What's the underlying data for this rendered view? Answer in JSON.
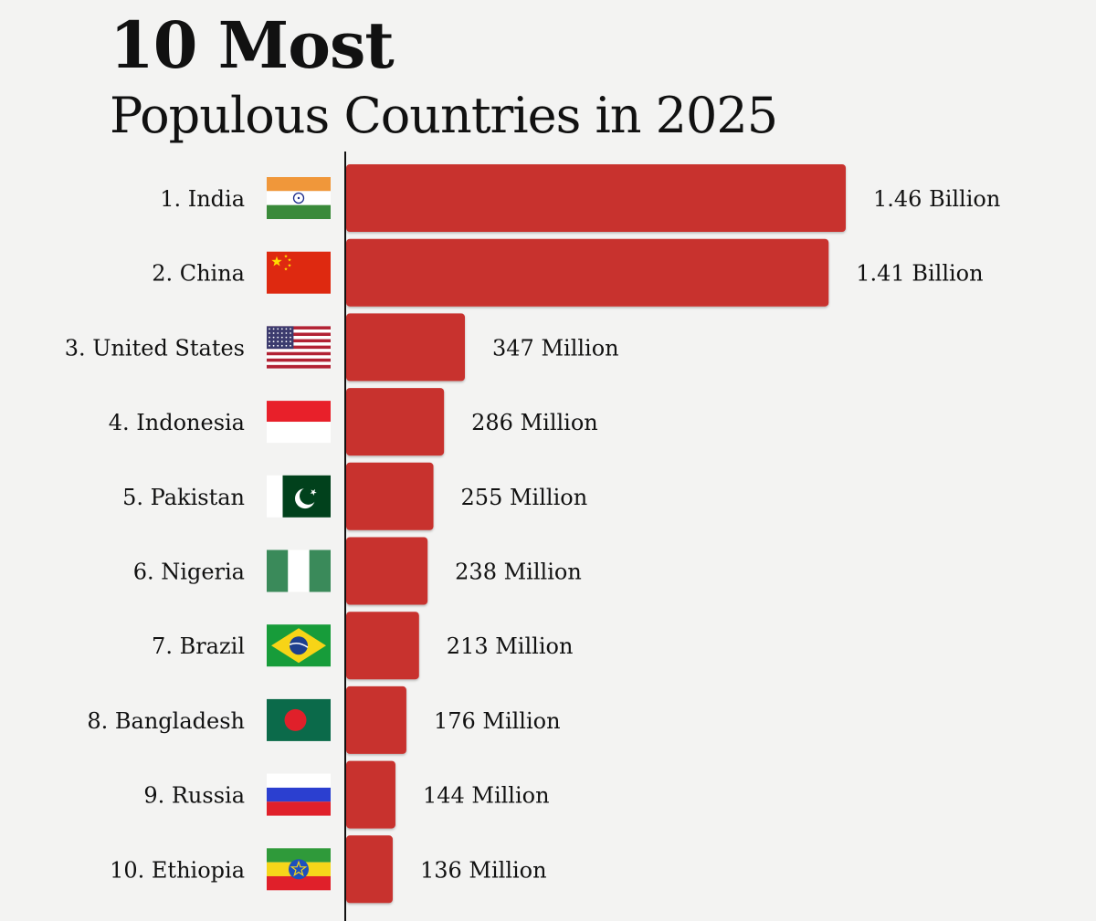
{
  "chart_data": {
    "type": "bar",
    "orientation": "horizontal",
    "title": "10 Most",
    "subtitle": "Populous Countries in 2025",
    "bar_color": "#c8302e",
    "categories": [
      "1. India",
      "2. China",
      "3. United States",
      "4. Indonesia",
      "5. Pakistan",
      "6. Nigeria",
      "7. Brazil",
      "8. Bangladesh",
      "9. Russia",
      "10. Ethiopia"
    ],
    "flags": [
      "india-flag-icon",
      "china-flag-icon",
      "united-states-flag-icon",
      "indonesia-flag-icon",
      "pakistan-flag-icon",
      "nigeria-flag-icon",
      "brazil-flag-icon",
      "bangladesh-flag-icon",
      "russia-flag-icon",
      "ethiopia-flag-icon"
    ],
    "values": [
      1460,
      1410,
      347,
      286,
      255,
      238,
      213,
      176,
      144,
      136
    ],
    "value_unit": "Million",
    "value_labels": [
      "1.46 Billion",
      "1.41 Billion",
      "347 Million",
      "286 Million",
      "255 Million",
      "238 Million",
      "213 Million",
      "176 Million",
      "144 Million",
      "136 Million"
    ],
    "xlim": [
      0,
      1460
    ],
    "grid": false,
    "legend": "none"
  }
}
